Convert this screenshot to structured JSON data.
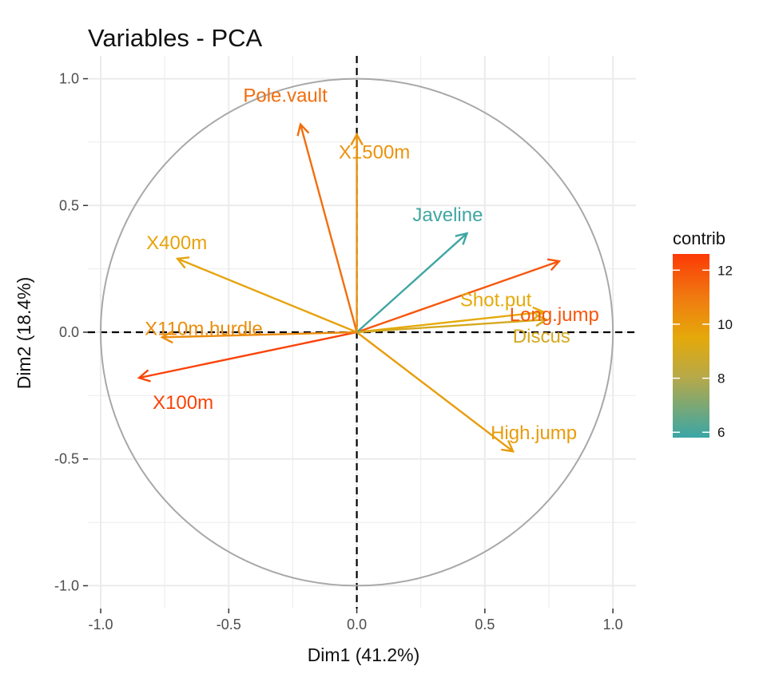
{
  "chart_data": {
    "type": "scatter",
    "title": "Variables - PCA",
    "xlabel": "Dim1 (41.2%)",
    "ylabel": "Dim2 (18.4%)",
    "xlim": [
      -1.05,
      1.09
    ],
    "ylim": [
      -1.09,
      1.09
    ],
    "x_ticks": [
      -1.0,
      -0.5,
      0.0,
      0.5,
      1.0
    ],
    "x_tick_labels": [
      "-1.0",
      "-0.5",
      "0.0",
      "0.5",
      "1.0"
    ],
    "y_ticks": [
      -1.0,
      -0.5,
      0.0,
      0.5,
      1.0
    ],
    "y_tick_labels": [
      "-1.0",
      "-0.5",
      "0.0",
      "0.5",
      "1.0"
    ],
    "grid": true,
    "unit_circle": true,
    "reference_lines": {
      "x": 0,
      "y": 0,
      "style": "dashed"
    },
    "variables": [
      {
        "name": "X100m",
        "x": -0.85,
        "y": -0.18,
        "contrib": 12.4
      },
      {
        "name": "Long.jump",
        "x": 0.79,
        "y": 0.28,
        "contrib": 11.9
      },
      {
        "name": "Shot.put",
        "x": 0.73,
        "y": 0.08,
        "contrib": 9.5
      },
      {
        "name": "High.jump",
        "x": 0.61,
        "y": -0.47,
        "contrib": 9.9
      },
      {
        "name": "X400m",
        "x": -0.7,
        "y": 0.29,
        "contrib": 9.7
      },
      {
        "name": "X110m.hurdle",
        "x": -0.76,
        "y": -0.02,
        "contrib": 10.4
      },
      {
        "name": "Discus",
        "x": 0.74,
        "y": 0.05,
        "contrib": 9.0
      },
      {
        "name": "Pole.vault",
        "x": -0.22,
        "y": 0.82,
        "contrib": 11.3
      },
      {
        "name": "Javeline",
        "x": 0.43,
        "y": 0.39,
        "contrib": 5.9
      },
      {
        "name": "X1500m",
        "x": 0.0,
        "y": 0.78,
        "contrib": 10.2
      }
    ],
    "legend": {
      "title": "contrib",
      "placement": "right",
      "min": 5.8,
      "max": 12.6,
      "ticks": [
        6,
        8,
        10,
        12
      ],
      "tick_labels": [
        "6",
        "8",
        "10",
        "12"
      ],
      "gradient": [
        {
          "value": 5.8,
          "color": "#3aa6a6"
        },
        {
          "value": 8.0,
          "color": "#b5a94a"
        },
        {
          "value": 9.5,
          "color": "#e5a90a"
        },
        {
          "value": 11.0,
          "color": "#f07a10"
        },
        {
          "value": 12.6,
          "color": "#fc3a06"
        }
      ]
    }
  },
  "colors": {
    "circle": "#a8a8a8",
    "grid": "#ebebeb",
    "reference_line": "#000000"
  }
}
